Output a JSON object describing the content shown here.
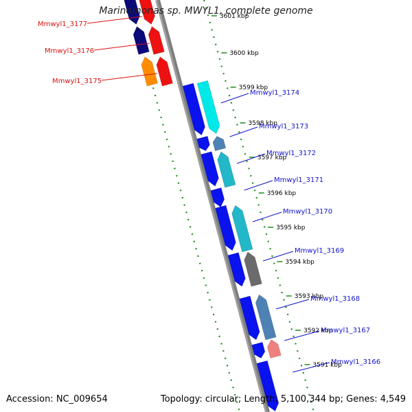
{
  "title": "Marinomonas sp. MWYL1, complete genome",
  "accession_text": "Accession: NC_009654",
  "topology_text": "Topology: circular; Length: 5,100,344 bp; Genes: 4,549",
  "colors": {
    "backbone": "#7f7f7f",
    "dotted_ring": "#1e8a1e",
    "reverse_label": "#dd1111",
    "forward_label": "#1111cc",
    "tick_label": "#000000"
  },
  "ticks": [
    {
      "label": "3601 kbp"
    },
    {
      "label": "3600 kbp"
    },
    {
      "label": "3599 kbp"
    },
    {
      "label": "3598 kbp"
    },
    {
      "label": "3597 kbp"
    },
    {
      "label": "3596 kbp"
    },
    {
      "label": "3595 kbp"
    },
    {
      "label": "3594 kbp"
    },
    {
      "label": "3593 kbp"
    },
    {
      "label": "3592 kbp"
    },
    {
      "label": "3591 kbp"
    }
  ],
  "genes": [
    {
      "name": "Mmwyl1_3177",
      "strand": "reverse"
    },
    {
      "name": "Mmwyl1_3176",
      "strand": "reverse"
    },
    {
      "name": "Mmwyl1_3175",
      "strand": "reverse"
    },
    {
      "name": "Mmwyl1_3174",
      "strand": "forward"
    },
    {
      "name": "Mmwyl1_3173",
      "strand": "forward"
    },
    {
      "name": "Mmwyl1_3172",
      "strand": "forward"
    },
    {
      "name": "Mmwyl1_3171",
      "strand": "forward"
    },
    {
      "name": "Mmwyl1_3170",
      "strand": "forward"
    },
    {
      "name": "Mmwyl1_3169",
      "strand": "forward"
    },
    {
      "name": "Mmwyl1_3168",
      "strand": "forward"
    },
    {
      "name": "Mmwyl1_3167",
      "strand": "forward"
    },
    {
      "name": "Mmwyl1_3166",
      "strand": "forward"
    }
  ]
}
